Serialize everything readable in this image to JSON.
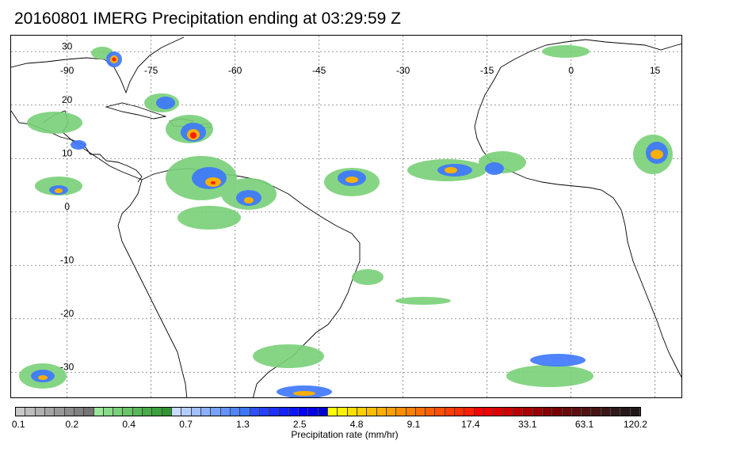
{
  "title": "20160801 IMERG Precipitation ending at 03:29:59 Z",
  "map": {
    "lon_range": [
      -100,
      20
    ],
    "lat_range": [
      -35,
      33
    ],
    "lon_labels": [
      "-90",
      "-75",
      "-60",
      "-45",
      "-30",
      "-15",
      "0",
      "15"
    ],
    "lat_labels": [
      "30",
      "20",
      "10",
      "0",
      "-10",
      "-20",
      "-30"
    ]
  },
  "colorbar": {
    "title": "Precipitation rate (mm/hr)",
    "tick_labels": [
      "0.1",
      "0.2",
      "0.4",
      "0.7",
      "1.3",
      "2.5",
      "4.8",
      "9.1",
      "17.4",
      "33.1",
      "63.1",
      "120.2"
    ],
    "colors": [
      "#c8c8c8",
      "#bcbcbc",
      "#b0b0b0",
      "#a4a4a4",
      "#989898",
      "#8c8c8c",
      "#808080",
      "#747474",
      "#98e898",
      "#88dc88",
      "#78d078",
      "#68c468",
      "#58b858",
      "#48ac48",
      "#3ca03c",
      "#309430",
      "#c8dcff",
      "#b4cdff",
      "#a0bfff",
      "#8cb0ff",
      "#78a2ff",
      "#6493ff",
      "#5085ff",
      "#3c76ff",
      "#2e4fff",
      "#2540ff",
      "#1c31ff",
      "#1322ff",
      "#0a14ff",
      "#0000ff",
      "#0000e8",
      "#0000d0",
      "#ffff00",
      "#ffef00",
      "#ffdf00",
      "#ffcf00",
      "#ffbf00",
      "#ffaf00",
      "#ff9f00",
      "#ff8f00",
      "#ff7f00",
      "#ff6f00",
      "#ff5f00",
      "#ff4f00",
      "#ff3f00",
      "#ff2f00",
      "#ff1f00",
      "#ff0000",
      "#ee0000",
      "#dd0000",
      "#cc0000",
      "#bb0000",
      "#aa0000",
      "#990000",
      "#880000",
      "#770000",
      "#6a0a0a",
      "#5e0e0e",
      "#521212",
      "#461414",
      "#3a1616",
      "#301818",
      "#281818",
      "#201818"
    ]
  }
}
